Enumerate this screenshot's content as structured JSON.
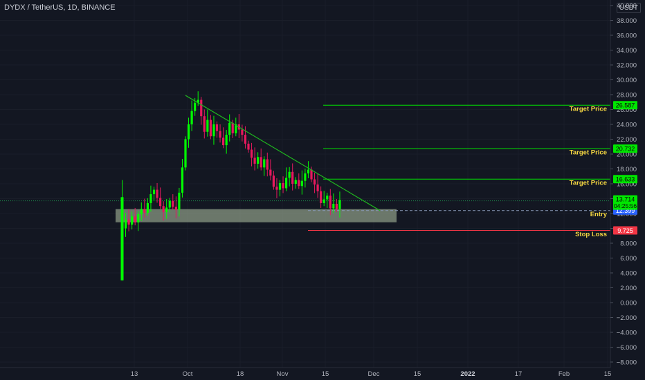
{
  "header": {
    "title": "DYDX / TetherUS, 1D, BINANCE",
    "currency_badge": "USDT"
  },
  "price_axis": {
    "labels": [
      "40.000",
      "38.000",
      "36.000",
      "34.000",
      "32.000",
      "30.000",
      "28.000",
      "26.000",
      "24.000",
      "22.000",
      "20.000",
      "18.000",
      "16.000",
      "14.000",
      "12.000",
      "10.000",
      "8.000",
      "6.000",
      "4.000",
      "2.000",
      "0.000",
      "−2.000",
      "−4.000",
      "−6.000",
      "−8.000"
    ],
    "values": [
      40,
      38,
      36,
      34,
      32,
      30,
      28,
      26,
      24,
      22,
      20,
      18,
      16,
      14,
      12,
      10,
      8,
      6,
      4,
      2,
      0,
      -2,
      -4,
      -6,
      -8
    ]
  },
  "time_axis": {
    "labels": [
      "13",
      "Oct",
      "18",
      "Nov",
      "15",
      "Dec",
      "15",
      "2022",
      "17",
      "Feb",
      "15"
    ]
  },
  "levels": [
    {
      "kind": "target",
      "label": "Target Price",
      "value": 26.587,
      "badge": "26.587",
      "color": "#00e700"
    },
    {
      "kind": "target",
      "label": "Target Price",
      "value": 20.732,
      "badge": "20.732",
      "color": "#00e700"
    },
    {
      "kind": "target",
      "label": "Target Price",
      "value": 16.633,
      "badge": "16.633",
      "color": "#00e700"
    },
    {
      "kind": "entry",
      "label": "Entry",
      "value": 12.399,
      "badge": "12.399",
      "color": "#2962ff"
    },
    {
      "kind": "stop",
      "label": "Stop Loss",
      "value": 9.725,
      "badge": "9.725",
      "color": "#f23645"
    }
  ],
  "last_price": {
    "value": 13.714,
    "badge": "13.714",
    "countdown": "04:25:56",
    "color": "#00e700"
  },
  "colors": {
    "up": "#00ff00",
    "down": "#e6195e",
    "background": "#131722",
    "trendline": "#1fb51f",
    "zone": "#b5c7a5"
  },
  "chart_data": {
    "type": "candlestick",
    "series": [
      {
        "name": "DYDX / TetherUS"
      }
    ],
    "ylim": [
      -9,
      41
    ],
    "annotations": [
      "Target Price",
      "Target Price",
      "Target Price",
      "Entry",
      "Stop Loss"
    ]
  }
}
